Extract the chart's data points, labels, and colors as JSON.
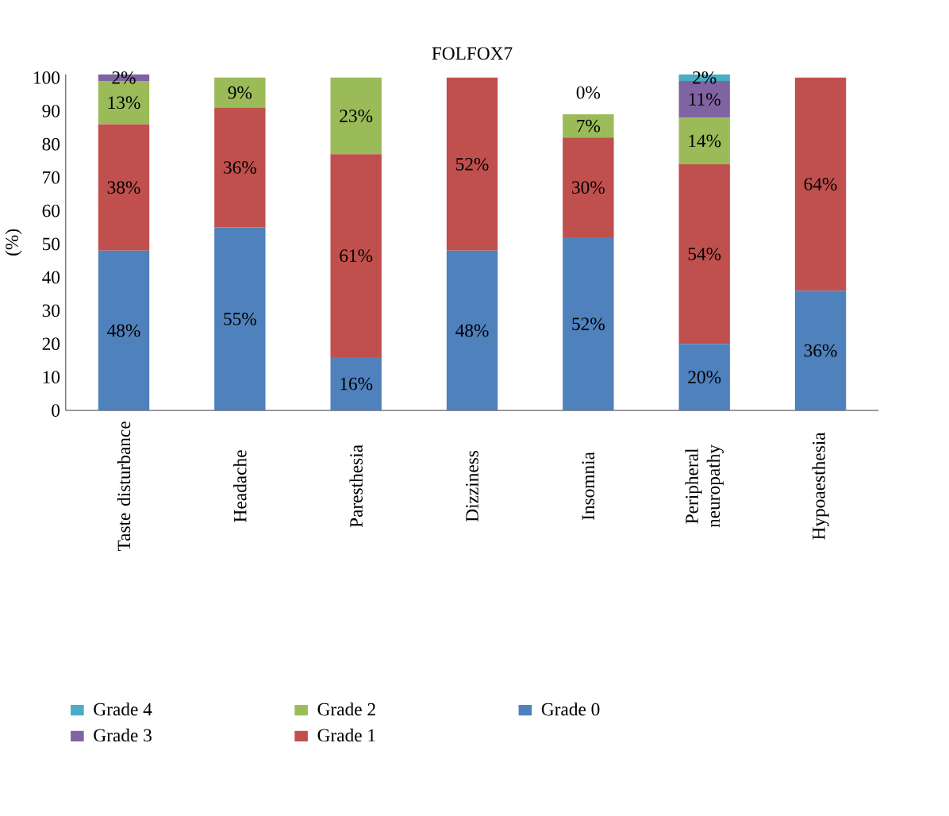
{
  "chart_data": {
    "type": "bar",
    "stacked": true,
    "title": "FOLFOX7",
    "ylabel": "(%)",
    "categories": [
      "Taste disturbance",
      "Headache",
      "Paresthesia",
      "Dizziness",
      "Insomnia",
      "Peripheral neuropathy",
      "Hypoaesthesia"
    ],
    "series": [
      {
        "name": "Grade 0",
        "color": "#4f81bd",
        "values": [
          48,
          55,
          16,
          48,
          52,
          20,
          36
        ],
        "value_labels": [
          "48%",
          "55%",
          "16%",
          "48%",
          "52%",
          "20%",
          "36%"
        ]
      },
      {
        "name": "Grade 1",
        "color": "#c0504d",
        "values": [
          38,
          36,
          61,
          52,
          30,
          54,
          64
        ],
        "value_labels": [
          "38%",
          "36%",
          "61%",
          "52%",
          "30%",
          "54%",
          "64%"
        ]
      },
      {
        "name": "Grade 2",
        "color": "#9bbb59",
        "values": [
          13,
          9,
          23,
          0,
          7,
          14,
          0
        ],
        "value_labels": [
          "13%",
          "9%",
          "23%",
          null,
          "7%",
          "14%",
          null
        ]
      },
      {
        "name": "Grade 3",
        "color": "#8064a2",
        "values": [
          2,
          0,
          0,
          0,
          0,
          11,
          0
        ],
        "value_labels": [
          "2%",
          null,
          null,
          null,
          "0%",
          "11%",
          null
        ]
      },
      {
        "name": "Grade 4",
        "color": "#4bacc6",
        "values": [
          0,
          0,
          0,
          0,
          0,
          2,
          0
        ],
        "value_labels": [
          null,
          null,
          null,
          null,
          null,
          "2%",
          null
        ]
      }
    ],
    "ylim": [
      0,
      101
    ],
    "yticks": [
      0,
      10,
      20,
      30,
      40,
      50,
      60,
      70,
      80,
      90,
      100
    ],
    "grid": false,
    "legend": "bottom"
  }
}
